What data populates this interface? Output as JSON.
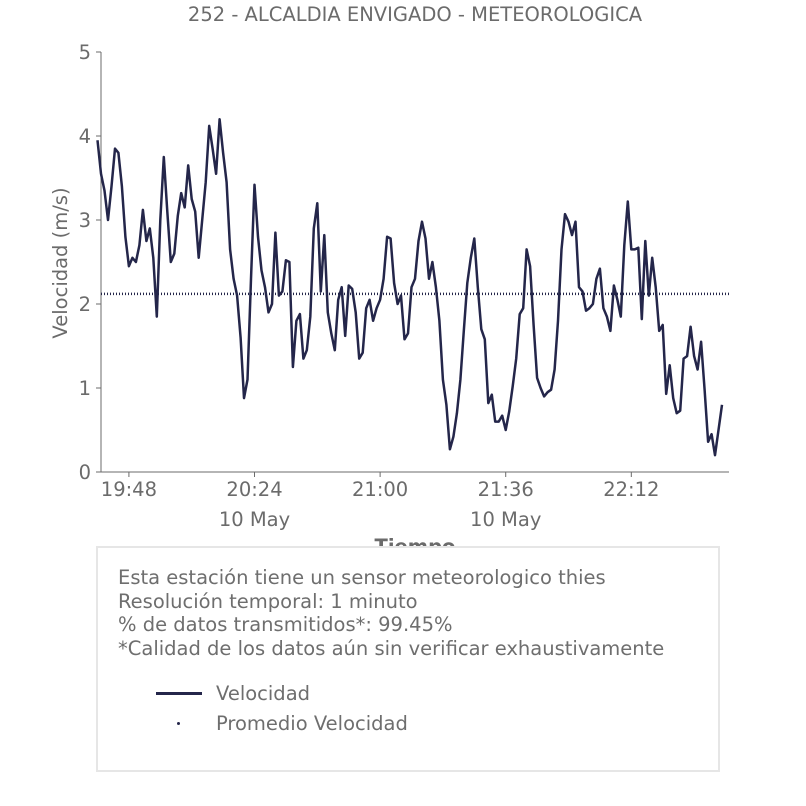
{
  "chart_data": {
    "type": "line",
    "title": "252 - ALCALDIA ENVIGADO - METEOROLOGICA",
    "xlabel": "Tiempo",
    "ylabel": "Velocidad (m/s)",
    "ylim": [
      0,
      5
    ],
    "yticks": [
      0,
      1,
      2,
      3,
      4,
      5
    ],
    "xlim_minutes": [
      1180,
      1360
    ],
    "xticks": [
      {
        "minute": 1188,
        "label": "19:48",
        "date": ""
      },
      {
        "minute": 1224,
        "label": "20:24",
        "date": "10 May"
      },
      {
        "minute": 1260,
        "label": "21:00",
        "date": ""
      },
      {
        "minute": 1296,
        "label": "21:36",
        "date": "10 May"
      },
      {
        "minute": 1332,
        "label": "22:12",
        "date": ""
      }
    ],
    "grid": false,
    "series": [
      {
        "name": "Velocidad",
        "color": "#24264a",
        "style": "solid",
        "start_time": "19:39",
        "interval_minutes": 1,
        "values": [
          3.95,
          3.55,
          3.35,
          3.0,
          3.4,
          3.85,
          3.8,
          3.4,
          2.8,
          2.45,
          2.55,
          2.5,
          2.7,
          3.12,
          2.75,
          2.9,
          2.55,
          1.85,
          3.0,
          3.75,
          3.1,
          2.5,
          2.6,
          3.05,
          3.32,
          3.15,
          3.65,
          3.25,
          3.1,
          2.55,
          3.0,
          3.45,
          4.12,
          3.85,
          3.55,
          4.2,
          3.8,
          3.45,
          2.65,
          2.3,
          2.1,
          1.6,
          0.88,
          1.1,
          2.3,
          3.42,
          2.8,
          2.4,
          2.2,
          1.9,
          2.0,
          2.85,
          2.1,
          2.15,
          2.52,
          2.5,
          1.25,
          1.8,
          1.88,
          1.35,
          1.45,
          1.85,
          2.9,
          3.2,
          2.15,
          2.82,
          1.9,
          1.65,
          1.45,
          2.05,
          2.2,
          1.62,
          2.22,
          2.18,
          1.9,
          1.35,
          1.42,
          1.95,
          2.05,
          1.8,
          1.95,
          2.05,
          2.3,
          2.8,
          2.78,
          2.25,
          2.0,
          2.1,
          1.58,
          1.65,
          2.2,
          2.3,
          2.75,
          2.98,
          2.78,
          2.3,
          2.5,
          2.2,
          1.8,
          1.1,
          0.8,
          0.27,
          0.42,
          0.7,
          1.1,
          1.68,
          2.25,
          2.55,
          2.78,
          2.2,
          1.7,
          1.58,
          0.82,
          0.92,
          0.6,
          0.6,
          0.67,
          0.5,
          0.72,
          1.02,
          1.35,
          1.88,
          1.95,
          2.65,
          2.45,
          1.75,
          1.12,
          1.0,
          0.9,
          0.95,
          0.98,
          1.22,
          1.8,
          2.65,
          3.07,
          2.98,
          2.82,
          2.98,
          2.2,
          2.15,
          1.92,
          1.95,
          2.0,
          2.3,
          2.42,
          1.95,
          1.85,
          1.68,
          2.22,
          2.05,
          1.85,
          2.7,
          3.22,
          2.65,
          2.65,
          2.67,
          1.82,
          2.75,
          2.1,
          2.55,
          2.2,
          1.68,
          1.75,
          0.93,
          1.27,
          0.88,
          0.7,
          0.73,
          1.35,
          1.38,
          1.73,
          1.38,
          1.22,
          1.55,
          0.98,
          0.36,
          0.45,
          0.2,
          0.5,
          0.8
        ]
      },
      {
        "name": "Promedio Velocidad",
        "color": "#24264a",
        "style": "dotted",
        "value": 2.12
      }
    ]
  },
  "info": {
    "line1": "Esta estación tiene un sensor meteorologico thies",
    "line2": "Resolución temporal: 1 minuto",
    "line3": "% de datos transmitidos*: 99.45%",
    "line4": "*Calidad de los datos aún sin verificar exhaustivamente"
  },
  "legend": {
    "item1": "Velocidad",
    "item2": "Promedio Velocidad"
  }
}
